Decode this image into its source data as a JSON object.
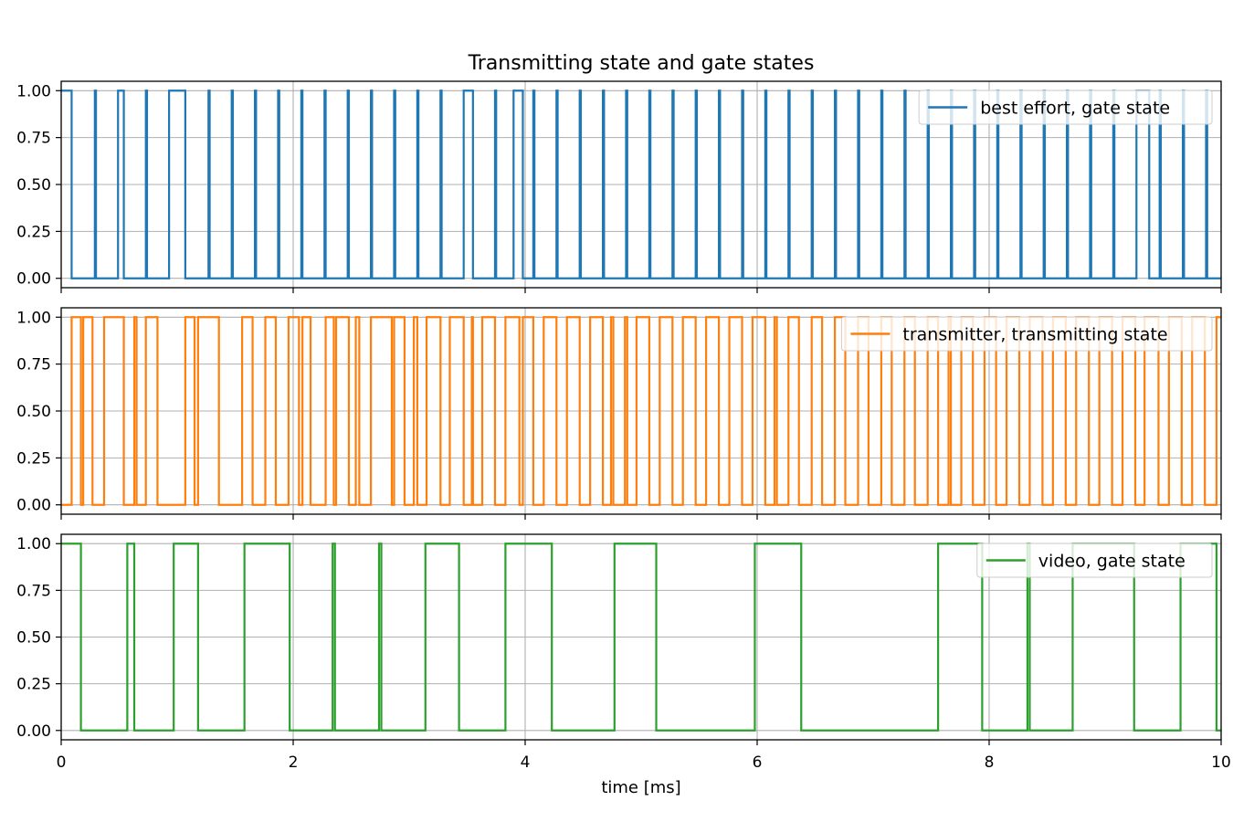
{
  "chart_data": {
    "type": "line",
    "title": "Transmitting state and gate states",
    "xlabel": "time [ms]",
    "xlim": [
      0,
      10
    ],
    "x_ticks": [
      "0",
      "2",
      "4",
      "6",
      "8",
      "10"
    ],
    "ylim": [
      -0.05,
      1.05
    ],
    "y_ticks": [
      "0.00",
      "0.25",
      "0.50",
      "0.75",
      "1.00"
    ],
    "grid": true,
    "sharex": true,
    "subplots": [
      {
        "legend_placement": "upper-right",
        "series": [
          {
            "name": "best effort, gate state",
            "color": "#1f77b4",
            "x": [
              0,
              0.09,
              0.29,
              0.3,
              0.49,
              0.54,
              0.73,
              0.74,
              0.93,
              1.07,
              1.27,
              1.28,
              1.47,
              1.48,
              1.67,
              1.68,
              1.87,
              1.88,
              2.07,
              2.08,
              2.27,
              2.28,
              2.47,
              2.48,
              2.67,
              2.68,
              2.87,
              2.88,
              3.07,
              3.08,
              3.27,
              3.28,
              3.47,
              3.55,
              3.74,
              3.75,
              3.9,
              3.98,
              4.07,
              4.08,
              4.27,
              4.28,
              4.47,
              4.48,
              4.67,
              4.68,
              4.87,
              4.88,
              5.07,
              5.08,
              5.27,
              5.28,
              5.47,
              5.48,
              5.67,
              5.68,
              5.87,
              5.88,
              6.07,
              6.08,
              6.27,
              6.28,
              6.47,
              6.48,
              6.67,
              6.68,
              6.87,
              6.88,
              7.07,
              7.08,
              7.27,
              7.28,
              7.47,
              7.48,
              7.67,
              7.68,
              7.87,
              7.88,
              8.07,
              8.08,
              8.27,
              8.28,
              8.47,
              8.48,
              8.67,
              8.68,
              8.87,
              8.88,
              9.07,
              9.08,
              9.27,
              9.38,
              9.47,
              9.48,
              9.67,
              9.68,
              9.87,
              9.88,
              10
            ],
            "y": [
              1,
              0,
              1,
              0,
              1,
              0,
              1,
              0,
              1,
              0,
              1,
              0,
              1,
              0,
              1,
              0,
              1,
              0,
              1,
              0,
              1,
              0,
              1,
              0,
              1,
              0,
              1,
              0,
              1,
              0,
              1,
              0,
              1,
              0,
              1,
              0,
              1,
              0,
              1,
              0,
              1,
              0,
              1,
              0,
              1,
              0,
              1,
              0,
              1,
              0,
              1,
              0,
              1,
              0,
              1,
              0,
              1,
              0,
              1,
              0,
              1,
              0,
              1,
              0,
              1,
              0,
              1,
              0,
              1,
              0,
              1,
              0,
              1,
              0,
              1,
              0,
              1,
              0,
              1,
              0,
              1,
              0,
              1,
              0,
              1,
              0,
              1,
              0,
              1,
              0,
              1,
              0,
              1,
              0,
              1,
              0,
              1,
              0,
              0
            ]
          }
        ]
      },
      {
        "legend_placement": "upper-right",
        "series": [
          {
            "name": "transmitter, transmitting state",
            "color": "#ff7f0e",
            "x": [
              0,
              0.09,
              0.17,
              0.19,
              0.27,
              0.37,
              0.54,
              0.63,
              0.65,
              0.73,
              0.83,
              1.07,
              1.15,
              1.18,
              1.36,
              1.56,
              1.65,
              1.76,
              1.85,
              1.96,
              2.05,
              2.08,
              2.15,
              2.28,
              2.35,
              2.37,
              2.48,
              2.54,
              2.57,
              2.67,
              2.85,
              2.87,
              2.96,
              3.04,
              3.07,
              3.15,
              3.27,
              3.35,
              3.47,
              3.54,
              3.55,
              3.63,
              3.74,
              3.83,
              3.95,
              3.98,
              4.07,
              4.16,
              4.27,
              4.36,
              4.47,
              4.56,
              4.67,
              4.74,
              4.76,
              4.86,
              4.88,
              4.96,
              5.07,
              5.16,
              5.27,
              5.36,
              5.47,
              5.56,
              5.67,
              5.76,
              5.87,
              5.96,
              6.07,
              6.15,
              6.17,
              6.27,
              6.36,
              6.47,
              6.56,
              6.67,
              6.76,
              6.87,
              6.96,
              7.07,
              7.16,
              7.27,
              7.36,
              7.47,
              7.56,
              7.65,
              7.67,
              7.76,
              7.86,
              7.96,
              8.06,
              8.15,
              8.26,
              8.35,
              8.46,
              8.55,
              8.66,
              8.75,
              8.86,
              8.95,
              9.06,
              9.15,
              9.26,
              9.34,
              9.46,
              9.55,
              9.66,
              9.75,
              9.86,
              9.96,
              10
            ],
            "y": [
              0,
              1,
              0,
              1,
              0,
              1,
              0,
              1,
              0,
              1,
              0,
              1,
              0,
              1,
              0,
              1,
              0,
              1,
              0,
              1,
              0,
              1,
              0,
              1,
              0,
              1,
              0,
              1,
              0,
              1,
              0,
              1,
              0,
              1,
              0,
              1,
              0,
              1,
              0,
              1,
              0,
              1,
              0,
              1,
              0,
              1,
              0,
              1,
              0,
              1,
              0,
              1,
              0,
              1,
              0,
              1,
              0,
              1,
              0,
              1,
              0,
              1,
              0,
              1,
              0,
              1,
              0,
              1,
              0,
              1,
              0,
              1,
              0,
              1,
              0,
              1,
              0,
              1,
              0,
              1,
              0,
              1,
              0,
              1,
              0,
              1,
              0,
              1,
              0,
              1,
              0,
              1,
              0,
              1,
              0,
              1,
              0,
              1,
              0,
              1,
              0,
              1,
              0,
              1,
              0,
              1,
              0,
              1,
              0,
              1,
              1
            ]
          }
        ]
      },
      {
        "legend_placement": "upper-right",
        "series": [
          {
            "name": "video, gate state",
            "color": "#2ca02c",
            "x": [
              0,
              0.17,
              0.57,
              0.63,
              0.97,
              1.18,
              1.58,
              1.97,
              2.34,
              2.36,
              2.74,
              2.76,
              3.14,
              3.43,
              3.83,
              4.23,
              4.77,
              5.13,
              5.98,
              6.38,
              7.56,
              7.94,
              8.33,
              8.35,
              8.72,
              9.25,
              9.65,
              9.96,
              10
            ],
            "y": [
              1,
              0,
              1,
              0,
              1,
              0,
              1,
              0,
              1,
              0,
              1,
              0,
              1,
              0,
              1,
              0,
              1,
              0,
              1,
              0,
              1,
              0,
              1,
              0,
              1,
              0,
              1,
              0,
              0
            ]
          }
        ]
      }
    ]
  }
}
